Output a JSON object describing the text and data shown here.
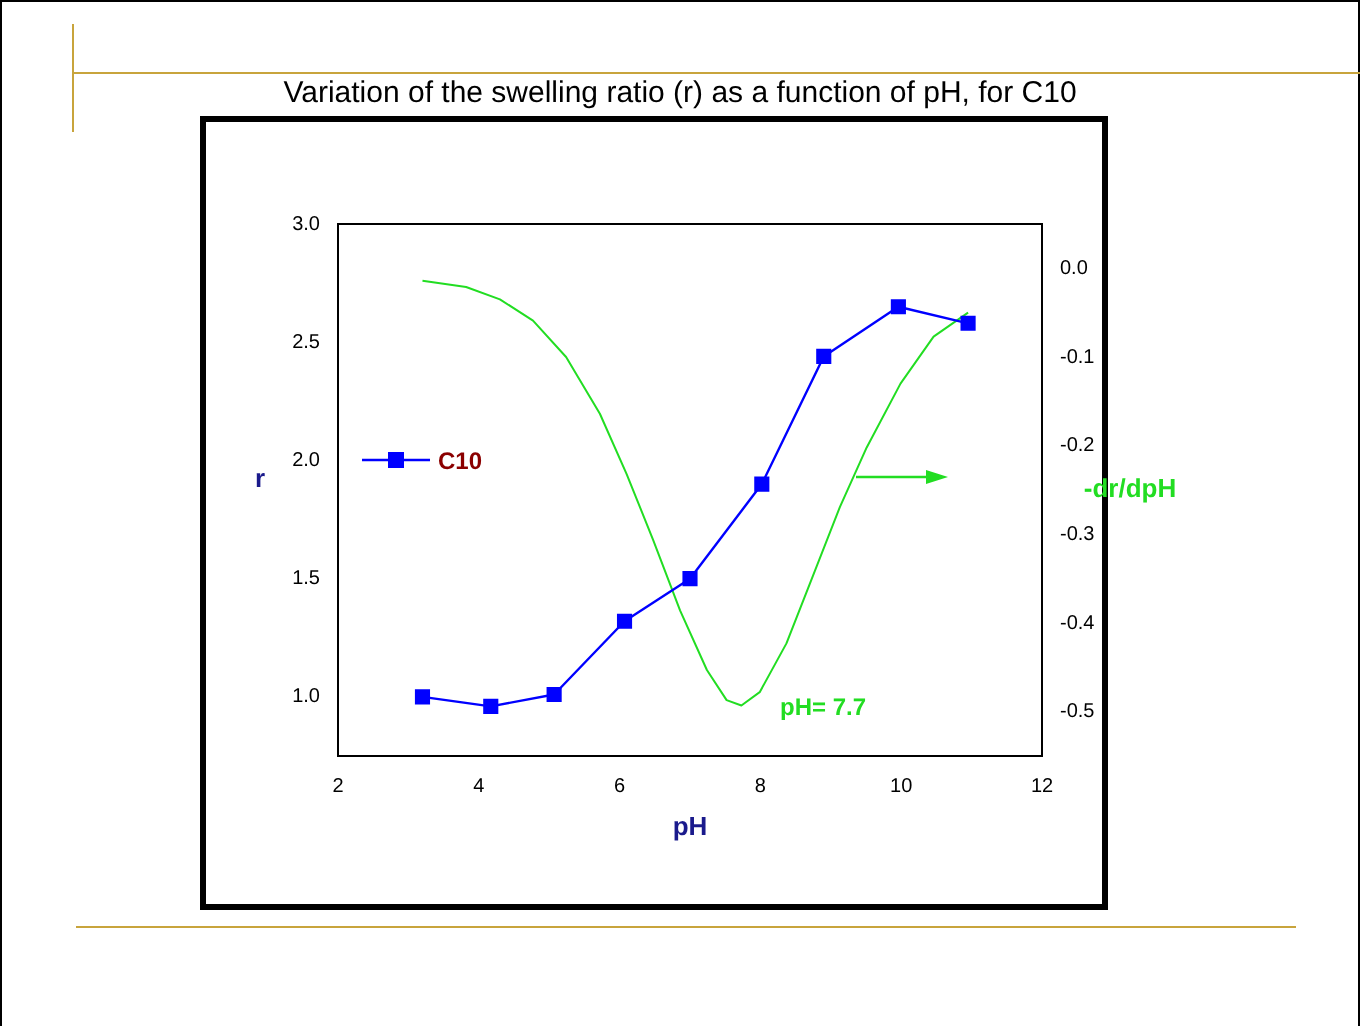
{
  "chart_data": {
    "type": "line",
    "title": "Variation of the swelling ratio (r) as a function of pH, for C10",
    "xlabel": "pH",
    "ylabel": "r",
    "y2label": "-dr/dpH",
    "xlim": [
      2,
      12
    ],
    "xticks": [
      2,
      4,
      6,
      8,
      10,
      12
    ],
    "ylim": [
      0.75,
      3.0
    ],
    "yticks": [
      {
        "value": 1,
        "label": "1.0"
      },
      {
        "value": 1.5,
        "label": "1.5"
      },
      {
        "value": 2,
        "label": "2.0"
      },
      {
        "value": 2.5,
        "label": "2.5"
      },
      {
        "value": 3,
        "label": "3.0"
      }
    ],
    "y2lim": [
      -0.55,
      0.05
    ],
    "y2ticks": [
      {
        "value": -0.5,
        "label": "-0.5"
      },
      {
        "value": -0.4,
        "label": "-0.4"
      },
      {
        "value": -0.3,
        "label": "-0.3"
      },
      {
        "value": -0.2,
        "label": "-0.2"
      },
      {
        "value": -0.1,
        "label": "-0.1"
      },
      {
        "value": 0,
        "label": "0.0"
      }
    ],
    "grid": false,
    "legend": "left",
    "marker": "square",
    "line_style": "solid",
    "annotations": [
      "pH= 7.7"
    ],
    "series": [
      {
        "name": "C10",
        "color": "#0000ff",
        "x": [
          3.2,
          4.17,
          5.07,
          6.07,
          7.0,
          8.02,
          8.9,
          9.96,
          10.95
        ],
        "values": [
          1.0,
          0.96,
          1.01,
          1.32,
          1.5,
          1.9,
          2.44,
          2.65,
          2.58
        ]
      },
      {
        "type": "line",
        "axis": "y2",
        "marker": "none",
        "color": "#22dd22",
        "x": [
          3.2,
          3.82,
          4.3,
          4.77,
          5.24,
          5.72,
          6.1,
          6.48,
          6.86,
          7.24,
          7.52,
          7.73,
          7.99,
          8.37,
          8.76,
          9.13,
          9.51,
          9.99,
          10.46,
          10.95
        ],
        "values": [
          -0.014,
          -0.021,
          -0.035,
          -0.059,
          -0.1,
          -0.164,
          -0.232,
          -0.307,
          -0.386,
          -0.453,
          -0.487,
          -0.493,
          -0.478,
          -0.423,
          -0.344,
          -0.269,
          -0.202,
          -0.13,
          -0.077,
          -0.05
        ]
      }
    ]
  }
}
